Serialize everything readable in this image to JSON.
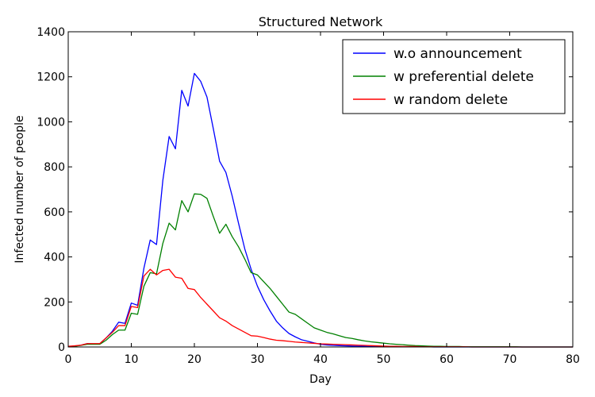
{
  "chart_data": {
    "type": "line",
    "title": "Structured Network",
    "xlabel": "Day",
    "ylabel": "Infected number of people",
    "xlim": [
      0,
      80
    ],
    "ylim": [
      0,
      1400
    ],
    "xticks": [
      "0",
      "10",
      "20",
      "30",
      "40",
      "50",
      "60",
      "70",
      "80"
    ],
    "yticks": [
      "0",
      "200",
      "400",
      "600",
      "800",
      "1000",
      "1200",
      "1400"
    ],
    "grid": false,
    "legend_position": "top-right",
    "x": [
      0,
      1,
      2,
      3,
      4,
      5,
      6,
      7,
      8,
      9,
      10,
      11,
      12,
      13,
      14,
      15,
      16,
      17,
      18,
      19,
      20,
      21,
      22,
      23,
      24,
      25,
      26,
      27,
      28,
      29,
      30,
      31,
      32,
      33,
      34,
      35,
      36,
      37,
      38,
      39,
      40,
      41,
      42,
      43,
      44,
      45,
      46,
      47,
      48,
      49,
      50,
      51,
      52,
      53,
      54,
      55,
      56,
      57,
      58,
      59,
      60,
      61,
      62,
      63,
      64,
      65,
      66,
      67,
      68,
      69,
      70,
      71,
      72,
      73,
      74,
      75,
      76,
      77,
      78,
      79,
      80
    ],
    "series": [
      {
        "name": "w.o announcement",
        "color": "#0000ff",
        "values": [
          2,
          4,
          8,
          15,
          14,
          14,
          40,
          70,
          110,
          105,
          195,
          185,
          350,
          475,
          455,
          740,
          935,
          880,
          1140,
          1070,
          1215,
          1180,
          1110,
          970,
          825,
          775,
          670,
          550,
          435,
          345,
          270,
          210,
          160,
          115,
          85,
          60,
          45,
          32,
          25,
          18,
          12,
          9,
          7,
          6,
          5,
          4,
          3,
          3,
          2,
          2,
          2,
          1,
          1,
          1,
          1,
          1,
          1,
          1,
          0,
          0,
          0,
          0,
          0,
          0,
          0,
          0,
          0,
          0,
          0,
          0,
          0,
          0,
          0,
          0,
          0,
          0,
          0,
          0,
          0,
          0,
          0
        ]
      },
      {
        "name": "w preferential delete",
        "color": "#008000",
        "values": [
          2,
          3,
          7,
          12,
          12,
          12,
          30,
          55,
          75,
          75,
          150,
          145,
          270,
          330,
          325,
          460,
          550,
          520,
          650,
          600,
          680,
          678,
          660,
          580,
          505,
          545,
          490,
          445,
          390,
          330,
          320,
          290,
          260,
          225,
          190,
          155,
          145,
          125,
          105,
          85,
          75,
          65,
          58,
          50,
          42,
          38,
          32,
          27,
          23,
          20,
          17,
          14,
          12,
          10,
          8,
          6,
          5,
          4,
          3,
          3,
          2,
          2,
          2,
          1,
          1,
          1,
          1,
          1,
          1,
          1,
          1,
          1,
          0,
          0,
          0,
          0,
          0,
          0,
          0,
          0,
          0
        ]
      },
      {
        "name": "w random delete",
        "color": "#ff0000",
        "values": [
          3,
          5,
          8,
          15,
          15,
          15,
          40,
          65,
          95,
          95,
          180,
          175,
          315,
          345,
          320,
          340,
          345,
          310,
          305,
          260,
          255,
          220,
          190,
          160,
          130,
          115,
          95,
          80,
          65,
          50,
          48,
          42,
          35,
          30,
          28,
          25,
          22,
          20,
          18,
          16,
          14,
          13,
          12,
          11,
          10,
          9,
          8,
          7,
          6,
          5,
          4,
          3,
          3,
          2,
          2,
          2,
          1,
          1,
          1,
          1,
          1,
          1,
          1,
          1,
          0,
          0,
          0,
          0,
          0,
          0,
          0,
          0,
          0,
          0,
          0,
          0,
          0,
          0,
          0,
          0,
          0
        ]
      }
    ]
  }
}
